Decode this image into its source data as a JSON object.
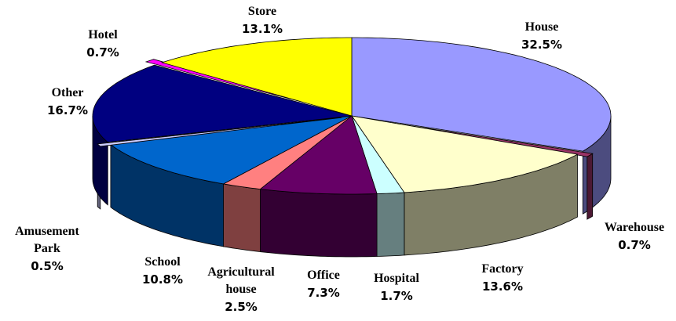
{
  "chart_data": {
    "type": "pie",
    "categories": [
      "House",
      "Warehouse",
      "Factory",
      "Hospital",
      "Office",
      "Agricultural house",
      "School",
      "Amusement Park",
      "Other",
      "Hotel",
      "Store"
    ],
    "values": [
      32.5,
      0.7,
      13.6,
      1.7,
      7.3,
      2.5,
      10.8,
      0.5,
      16.7,
      0.7,
      13.1
    ],
    "value_labels": [
      "32.5%",
      "0.7%",
      "13.6%",
      "1.7%",
      "7.3%",
      "2.5%",
      "10.8%",
      "0.5%",
      "16.7%",
      "0.7%",
      "13.1%"
    ],
    "colors": [
      "#9999ff",
      "#993366",
      "#ffffcc",
      "#ccffff",
      "#660066",
      "#ff8080",
      "#0066cc",
      "#ccccff",
      "#000080",
      "#ff00ff",
      "#ffff00"
    ],
    "exploded": [
      1,
      7,
      9
    ]
  }
}
